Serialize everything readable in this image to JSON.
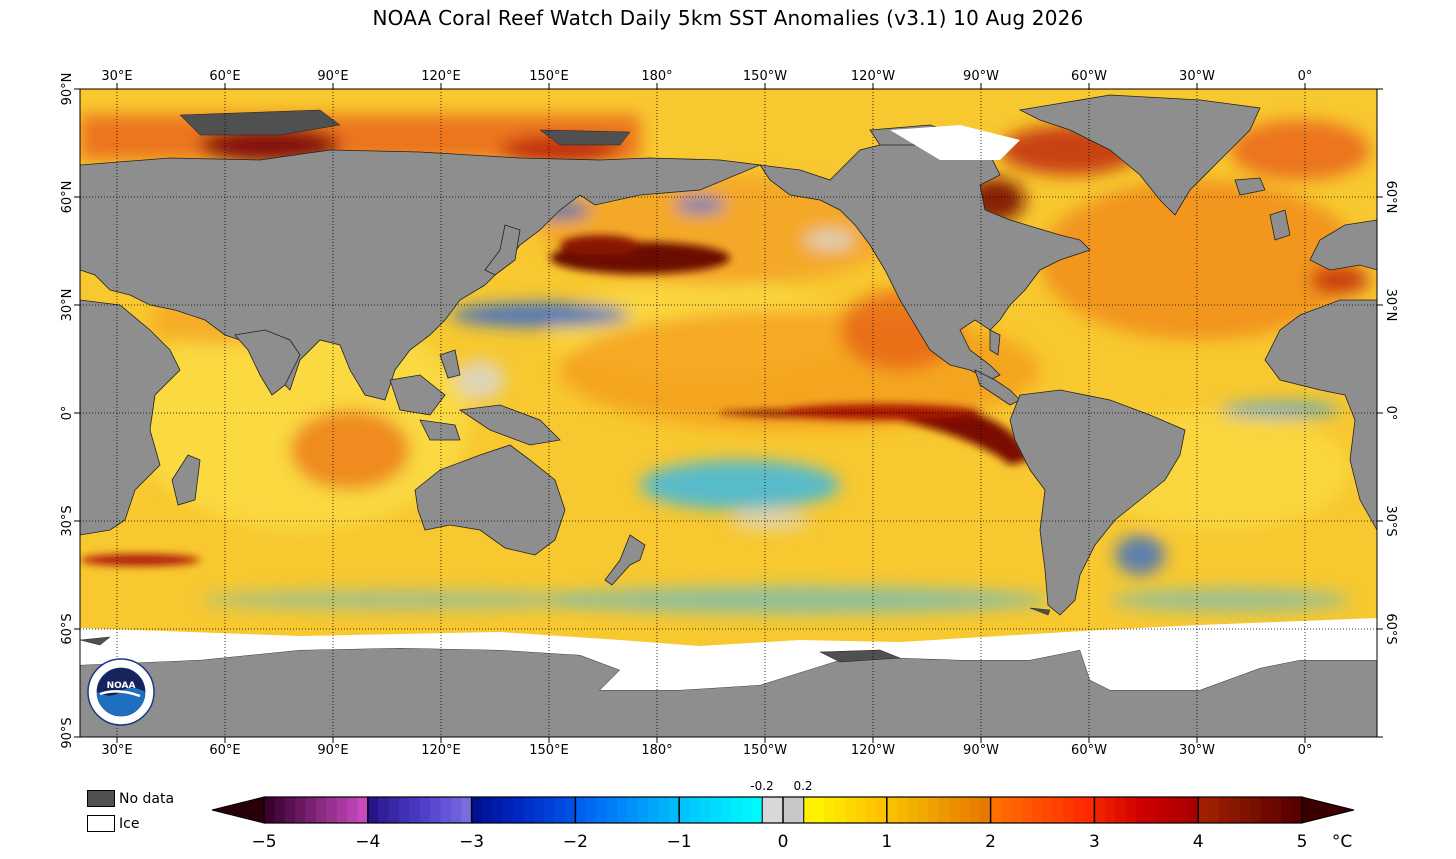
{
  "title": "NOAA Coral Reef Watch Daily 5km SST Anomalies  (v3.1)   10 Aug 2026",
  "lon_labels": [
    "30°E",
    "60°E",
    "90°E",
    "120°E",
    "150°E",
    "180°",
    "150°W",
    "120°W",
    "90°W",
    "60°W",
    "30°W",
    "0°"
  ],
  "lat_labels_left": [
    "90°N",
    "60°N",
    "30°N",
    "0°",
    "30°S",
    "60°S",
    "90°S"
  ],
  "lat_labels_right": [
    "60°N",
    "30°N",
    "0°",
    "30°S",
    "60°S"
  ],
  "legend": {
    "no_data": "No data",
    "ice": "Ice"
  },
  "colorbar": {
    "ticks": [
      "−5",
      "−4",
      "−3",
      "−2",
      "−1",
      "0",
      "1",
      "2",
      "3",
      "4",
      "5"
    ],
    "small_ticks": [
      "-0.2",
      "0.2"
    ],
    "unit": "°C"
  },
  "colors": {
    "land": "#8e8e8e",
    "no_data": "#505050",
    "ice": "#ffffff",
    "ocean_base": "#f7c22a"
  },
  "logo_text": "NOAA"
}
